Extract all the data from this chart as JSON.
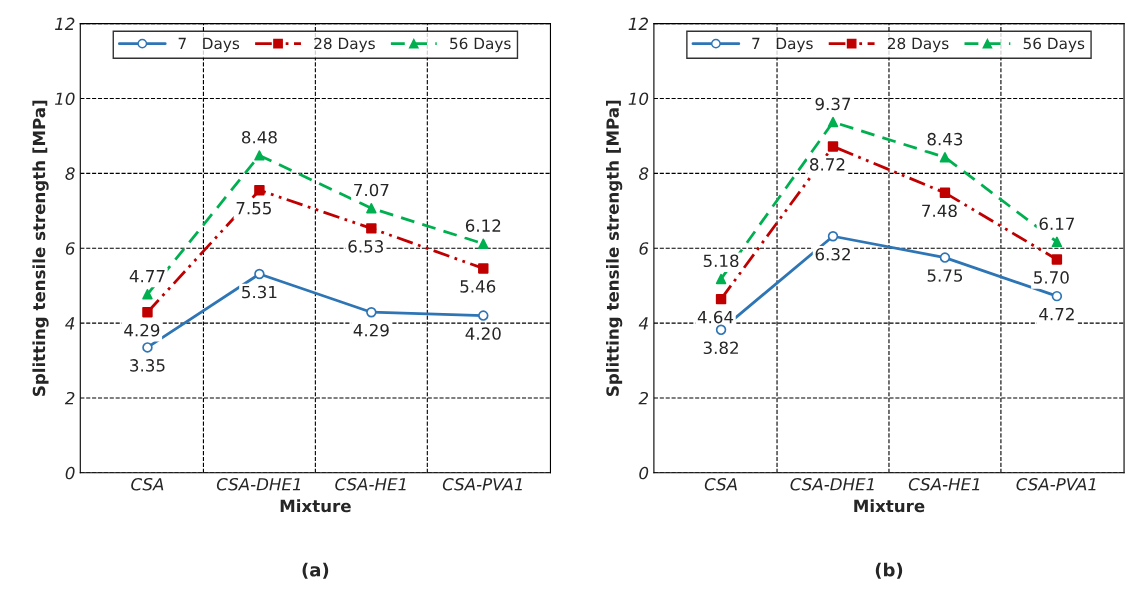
{
  "chart_data": [
    {
      "type": "line",
      "title": null,
      "xlabel": "Mixture",
      "ylabel": "Splitting tensile strength [MPa]",
      "categories": [
        "CSA",
        "CSA-DHE1",
        "CSA-HE1",
        "CSA-PVA1"
      ],
      "ylim": [
        0,
        12
      ],
      "yticks": [
        0,
        2,
        4,
        6,
        8,
        10,
        12
      ],
      "grid": true,
      "legend": "top",
      "annotations": [
        "(a)"
      ],
      "series": [
        {
          "name": "7   Days",
          "color": "#2e75b6",
          "marker": "circle",
          "line_style": "solid",
          "values": [
            3.35,
            5.31,
            4.29,
            4.2
          ],
          "value_labels": [
            "3.35",
            "5.31",
            "4.29",
            "4.20"
          ]
        },
        {
          "name": "28 Days",
          "color": "#c00000",
          "marker": "square",
          "line_style": "dashdot",
          "values": [
            4.29,
            7.55,
            6.53,
            5.46
          ],
          "value_labels": [
            "4.29",
            "7.55",
            "6.53",
            "5.46"
          ]
        },
        {
          "name": "56 Days",
          "color": "#00b050",
          "marker": "triangle",
          "line_style": "dashed",
          "values": [
            4.77,
            8.48,
            7.07,
            6.12
          ],
          "value_labels": [
            "4.77",
            "8.48",
            "7.07",
            "6.12"
          ]
        }
      ]
    },
    {
      "type": "line",
      "title": null,
      "xlabel": "Mixture",
      "ylabel": "Splitting tensile strength [MPa]",
      "categories": [
        "CSA",
        "CSA-DHE1",
        "CSA-HE1",
        "CSA-PVA1"
      ],
      "ylim": [
        0,
        12
      ],
      "yticks": [
        0,
        2,
        4,
        6,
        8,
        10,
        12
      ],
      "grid": true,
      "legend": "top",
      "annotations": [
        "(b)"
      ],
      "series": [
        {
          "name": "7   Days",
          "color": "#2e75b6",
          "marker": "circle",
          "line_style": "solid",
          "values": [
            3.82,
            6.32,
            5.75,
            4.72
          ],
          "value_labels": [
            "3.82",
            "6.32",
            "5.75",
            "4.72"
          ]
        },
        {
          "name": "28 Days",
          "color": "#c00000",
          "marker": "square",
          "line_style": "dashdot",
          "values": [
            4.64,
            8.72,
            7.48,
            5.7
          ],
          "value_labels": [
            "4.64",
            "8.72",
            "7.48",
            "5.70"
          ]
        },
        {
          "name": "56 Days",
          "color": "#00b050",
          "marker": "triangle",
          "line_style": "dashed",
          "values": [
            5.18,
            9.37,
            8.43,
            6.17
          ],
          "value_labels": [
            "5.18",
            "9.37",
            "8.43",
            "6.17"
          ]
        }
      ]
    }
  ]
}
